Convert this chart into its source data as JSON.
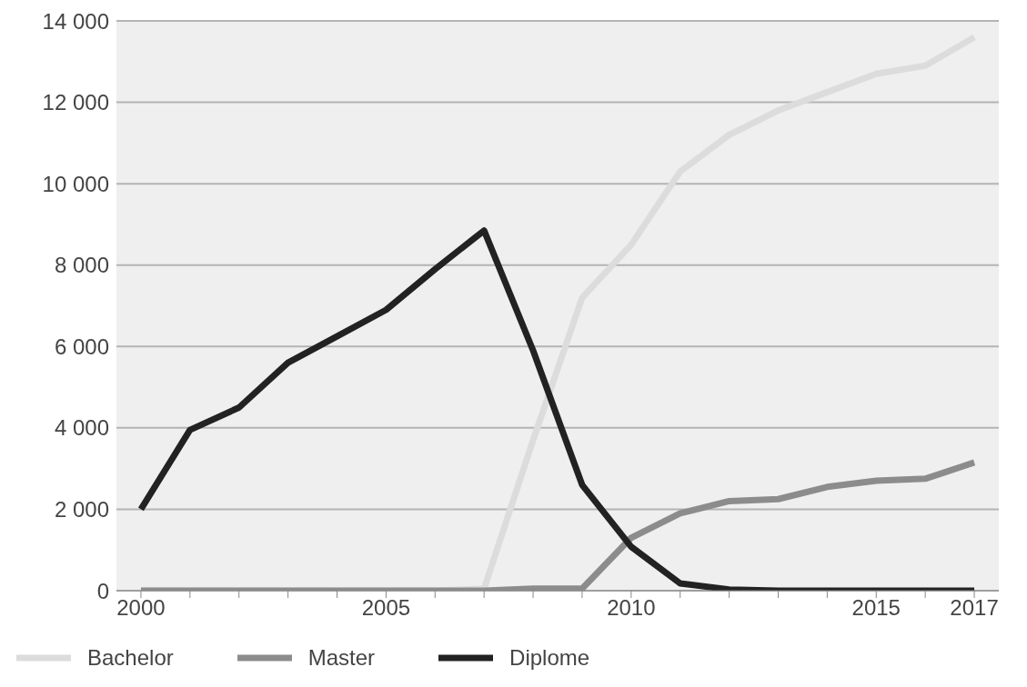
{
  "chart_data": {
    "type": "line",
    "x": [
      2000,
      2001,
      2002,
      2003,
      2004,
      2005,
      2006,
      2007,
      2008,
      2009,
      2010,
      2011,
      2012,
      2013,
      2014,
      2015,
      2016,
      2017
    ],
    "series": [
      {
        "name": "Bachelor",
        "color": "#dcdcdc",
        "values": [
          0,
          0,
          0,
          0,
          0,
          0,
          0,
          50,
          3700,
          7200,
          8500,
          10300,
          11200,
          11800,
          12250,
          12700,
          12900,
          13600
        ]
      },
      {
        "name": "Master",
        "color": "#8c8c8c",
        "values": [
          0,
          0,
          0,
          0,
          0,
          0,
          0,
          0,
          50,
          50,
          1300,
          1900,
          2200,
          2250,
          2550,
          2700,
          2750,
          3150
        ]
      },
      {
        "name": "Diplome",
        "color": "#222222",
        "values": [
          2000,
          3950,
          4500,
          5600,
          6250,
          6900,
          7900,
          8850,
          5900,
          2600,
          1080,
          180,
          30,
          0,
          0,
          0,
          0,
          0
        ]
      }
    ],
    "xlim": [
      1999.5,
      2017.5
    ],
    "xticks": [
      2000,
      {
        "value": 2001,
        "label": null
      },
      {
        "value": 2002,
        "label": null
      },
      {
        "value": 2003,
        "label": null
      },
      {
        "value": 2004,
        "label": null
      },
      2005,
      {
        "value": 2006,
        "label": null
      },
      {
        "value": 2007,
        "label": null
      },
      {
        "value": 2008,
        "label": null
      },
      {
        "value": 2009,
        "label": null
      },
      2010,
      {
        "value": 2011,
        "label": null
      },
      {
        "value": 2012,
        "label": null
      },
      {
        "value": 2013,
        "label": null
      },
      {
        "value": 2014,
        "label": null
      },
      2015,
      {
        "value": 2016,
        "label": null
      },
      2017
    ],
    "ylim": [
      0,
      14000
    ],
    "yticks": [
      {
        "value": 0,
        "label": "0"
      },
      {
        "value": 2000,
        "label": "2 000"
      },
      {
        "value": 4000,
        "label": "4 000"
      },
      {
        "value": 6000,
        "label": "6 000"
      },
      {
        "value": 8000,
        "label": "8 000"
      },
      {
        "value": 10000,
        "label": "10 000"
      },
      {
        "value": 12000,
        "label": "12 000"
      },
      {
        "value": 14000,
        "label": "14 000"
      }
    ],
    "grid": "y",
    "legend": "bottom left",
    "marker": "none",
    "line_style": "solid"
  }
}
